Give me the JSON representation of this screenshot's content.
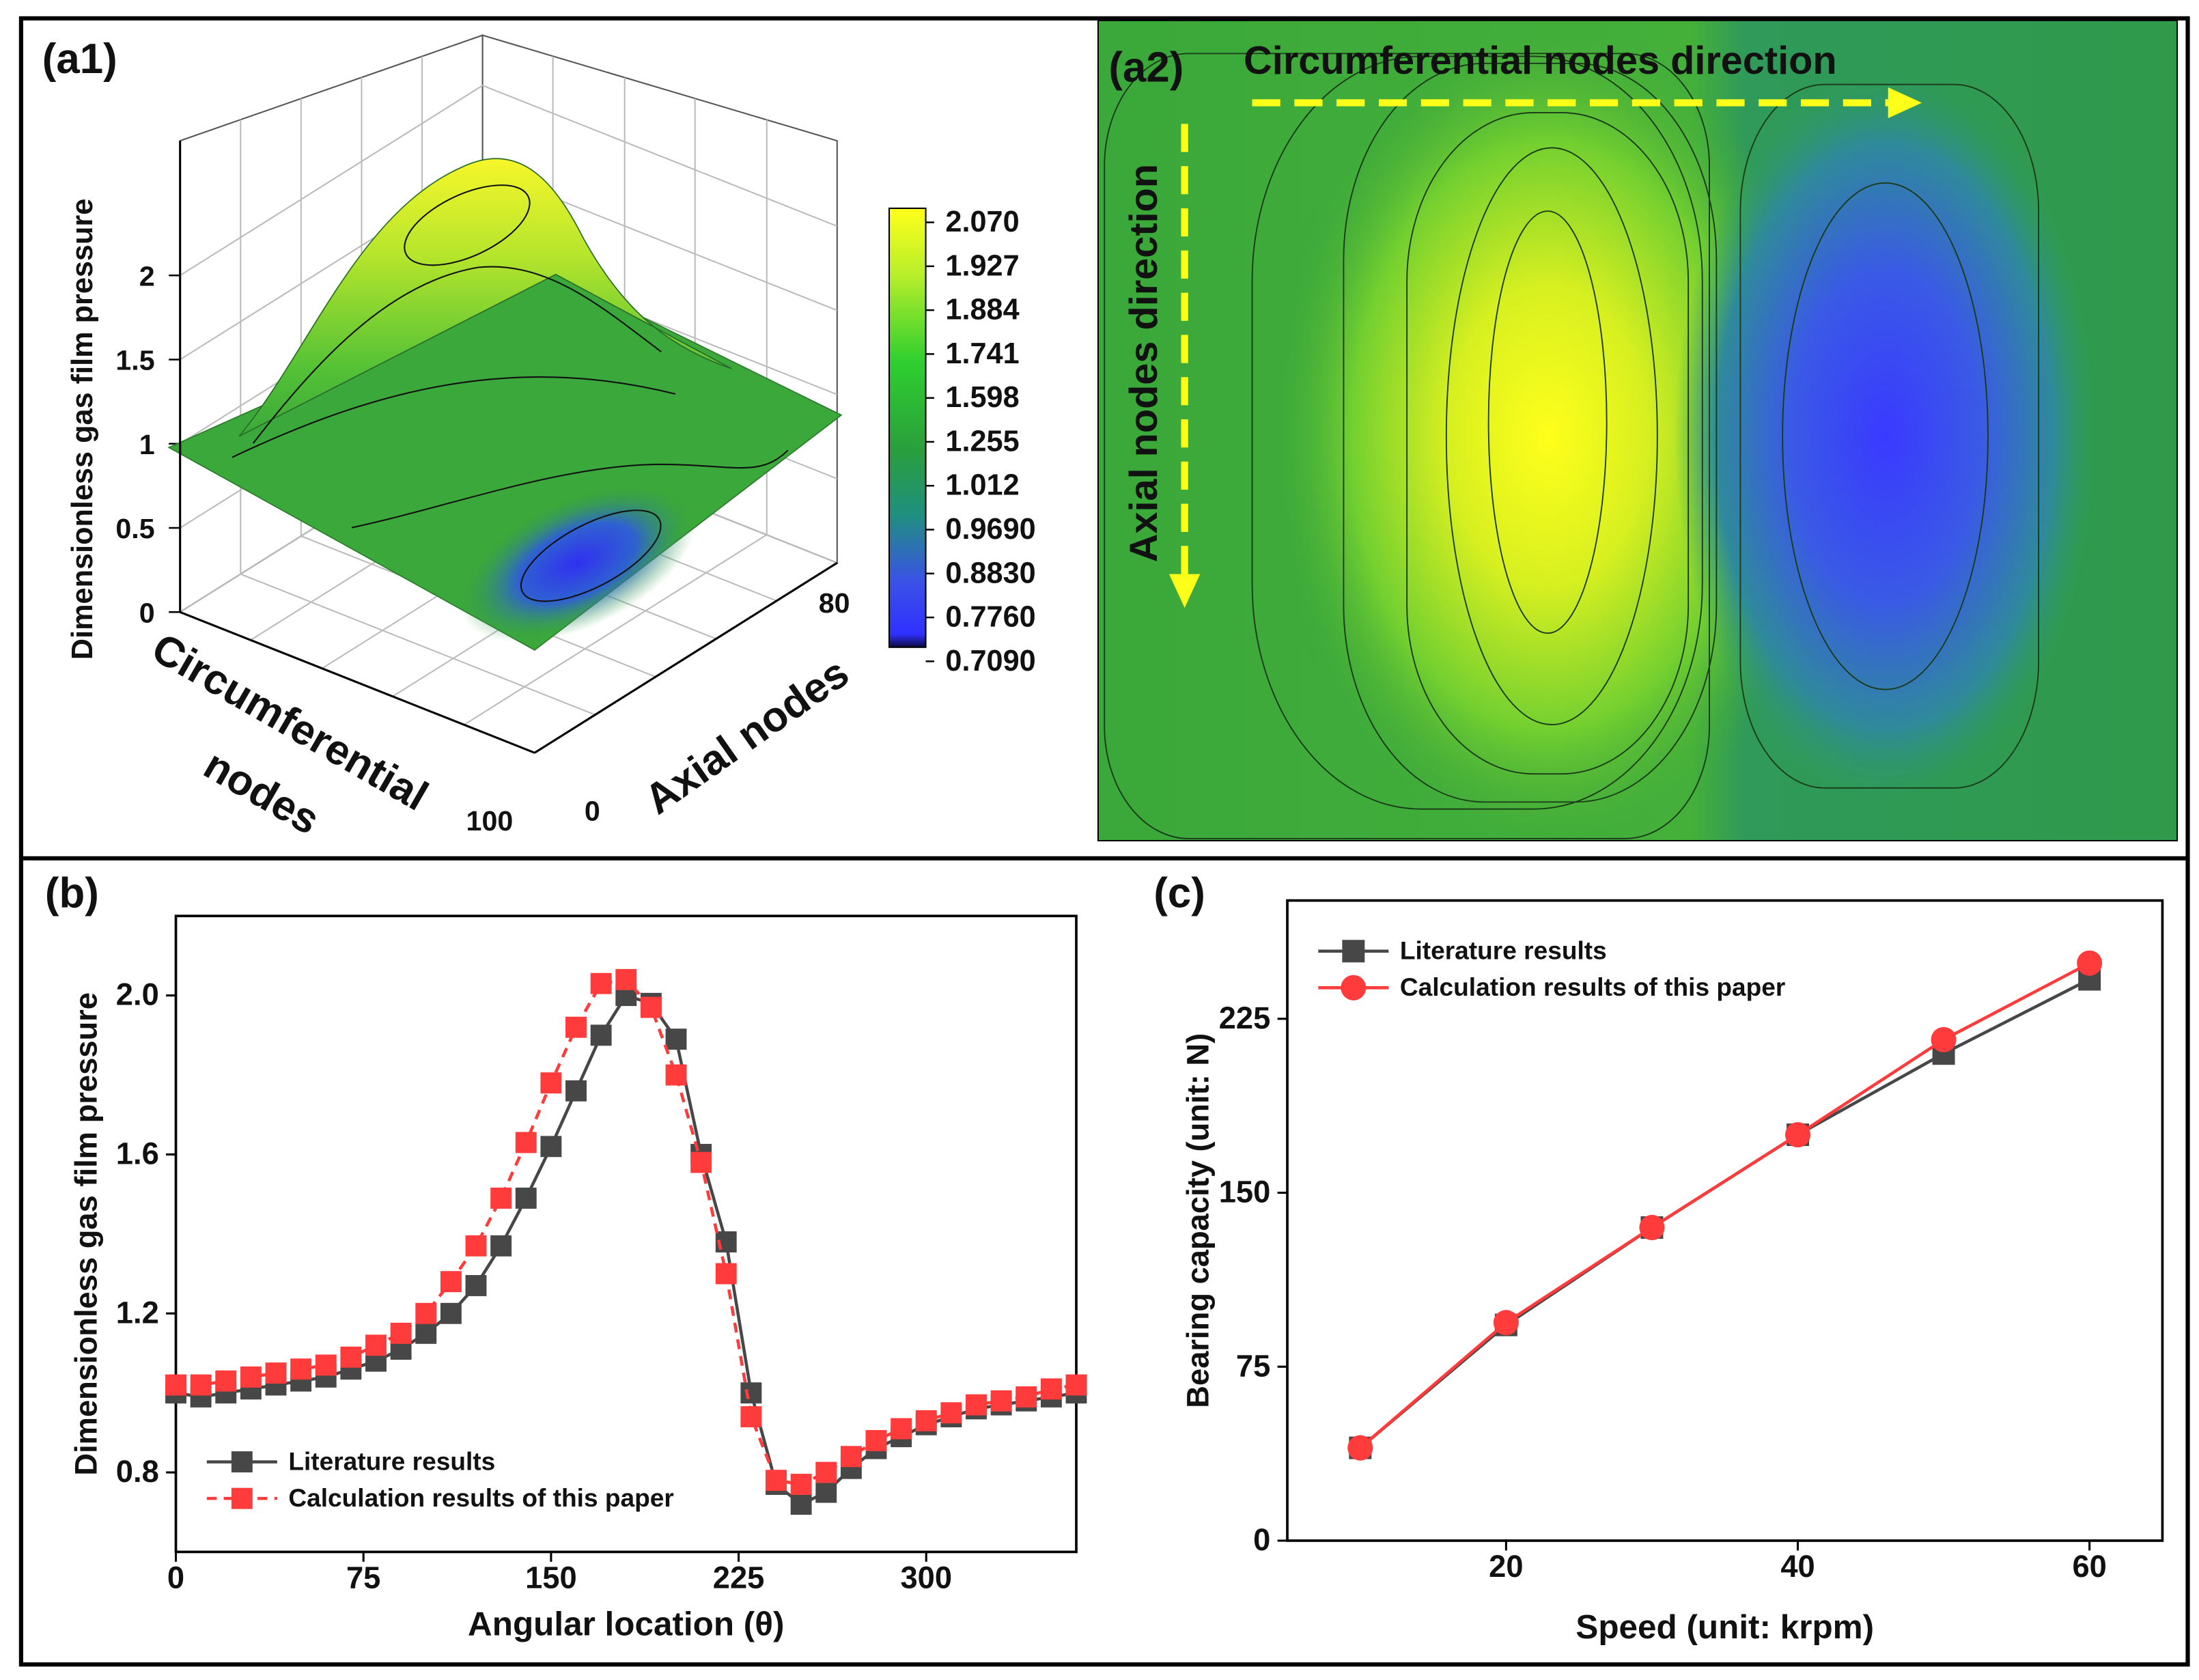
{
  "chart_data": [
    {
      "type": "surface",
      "panel_label": "(a1)",
      "zlabel": "Dimensionless gas film pressure",
      "xlabel": [
        "Circumferential",
        "nodes"
      ],
      "ylabel": "Axial nodes",
      "zlim": [
        0,
        2.8
      ],
      "zticks": [
        0,
        0.5,
        1,
        1.5,
        2
      ],
      "xticks": [
        100
      ],
      "yticks": [
        0,
        80
      ],
      "colorbar_ticks": [
        {
          "value": 2.07,
          "label": "2.070"
        },
        1.927,
        1.884,
        1.741,
        1.598,
        1.255,
        1.012,
        {
          "value": 0.969,
          "label": "0.9690"
        },
        {
          "value": 0.883,
          "label": "0.8830"
        },
        {
          "value": 0.776,
          "label": "0.7760"
        },
        {
          "value": 0.709,
          "label": "0.7090"
        }
      ]
    },
    {
      "type": "heatmap",
      "panel_label": "(a2)",
      "annotations": [
        "Circumferential nodes direction",
        "Axial nodes direction"
      ]
    },
    {
      "type": "line",
      "panel_label": "(b)",
      "xlabel": "Angular location (θ)",
      "ylabel": "Dimensionless gas film pressure",
      "x": [
        0,
        10,
        20,
        30,
        40,
        50,
        60,
        70,
        80,
        90,
        100,
        110,
        120,
        130,
        140,
        150,
        160,
        170,
        180,
        190,
        200,
        210,
        220,
        230,
        240,
        250,
        260,
        270,
        280,
        290,
        300,
        310,
        320,
        330,
        340,
        350,
        360
      ],
      "xlim": [
        0,
        360
      ],
      "xticks": [
        0,
        75,
        150,
        225,
        300
      ],
      "ylim": [
        0.6,
        2.2
      ],
      "yticks": [
        {
          "value": 2,
          "label": "2.0"
        },
        1.6,
        1.2,
        0.8
      ],
      "legend": "lower left",
      "series": [
        {
          "name": "Literature results",
          "color": "#474747",
          "marker": "square",
          "dash": false,
          "values": [
            1.0,
            0.99,
            1.0,
            1.01,
            1.02,
            1.03,
            1.04,
            1.06,
            1.08,
            1.11,
            1.15,
            1.2,
            1.27,
            1.37,
            1.49,
            1.62,
            1.76,
            1.9,
            2.0,
            1.98,
            1.89,
            1.6,
            1.38,
            1.0,
            0.77,
            0.72,
            0.75,
            0.81,
            0.86,
            0.89,
            0.92,
            0.94,
            0.96,
            0.97,
            0.98,
            0.99,
            1.0
          ]
        },
        {
          "name": "Calculation results of this paper",
          "color": "#ff3b3b",
          "marker": "square",
          "dash": true,
          "values": [
            1.02,
            1.02,
            1.03,
            1.04,
            1.05,
            1.06,
            1.07,
            1.09,
            1.12,
            1.15,
            1.2,
            1.28,
            1.37,
            1.49,
            1.63,
            1.78,
            1.92,
            2.03,
            2.04,
            1.97,
            1.8,
            1.58,
            1.3,
            0.94,
            0.78,
            0.77,
            0.8,
            0.84,
            0.88,
            0.91,
            0.93,
            0.95,
            0.97,
            0.98,
            0.99,
            1.01,
            1.02
          ]
        }
      ]
    },
    {
      "type": "line",
      "panel_label": "(c)",
      "xlabel": "Speed (unit: krpm)",
      "ylabel": "Bearing capacity (unit: N)",
      "x": [
        10,
        20,
        30,
        40,
        50,
        60
      ],
      "xlim": [
        5,
        65
      ],
      "xticks": [
        20,
        40,
        60
      ],
      "ylim": [
        0,
        276
      ],
      "yticks": [
        0,
        75,
        150,
        225
      ],
      "legend": "upper left",
      "series": [
        {
          "name": "Literature results",
          "color": "#474747",
          "marker": "square",
          "dash": false,
          "values": [
            40,
            93,
            135,
            175,
            210,
            242
          ]
        },
        {
          "name": "Calculation results of this paper",
          "color": "#ff3b3b",
          "marker": "circle",
          "dash": false,
          "values": [
            40,
            94,
            135,
            175,
            216,
            249
          ]
        }
      ]
    }
  ]
}
